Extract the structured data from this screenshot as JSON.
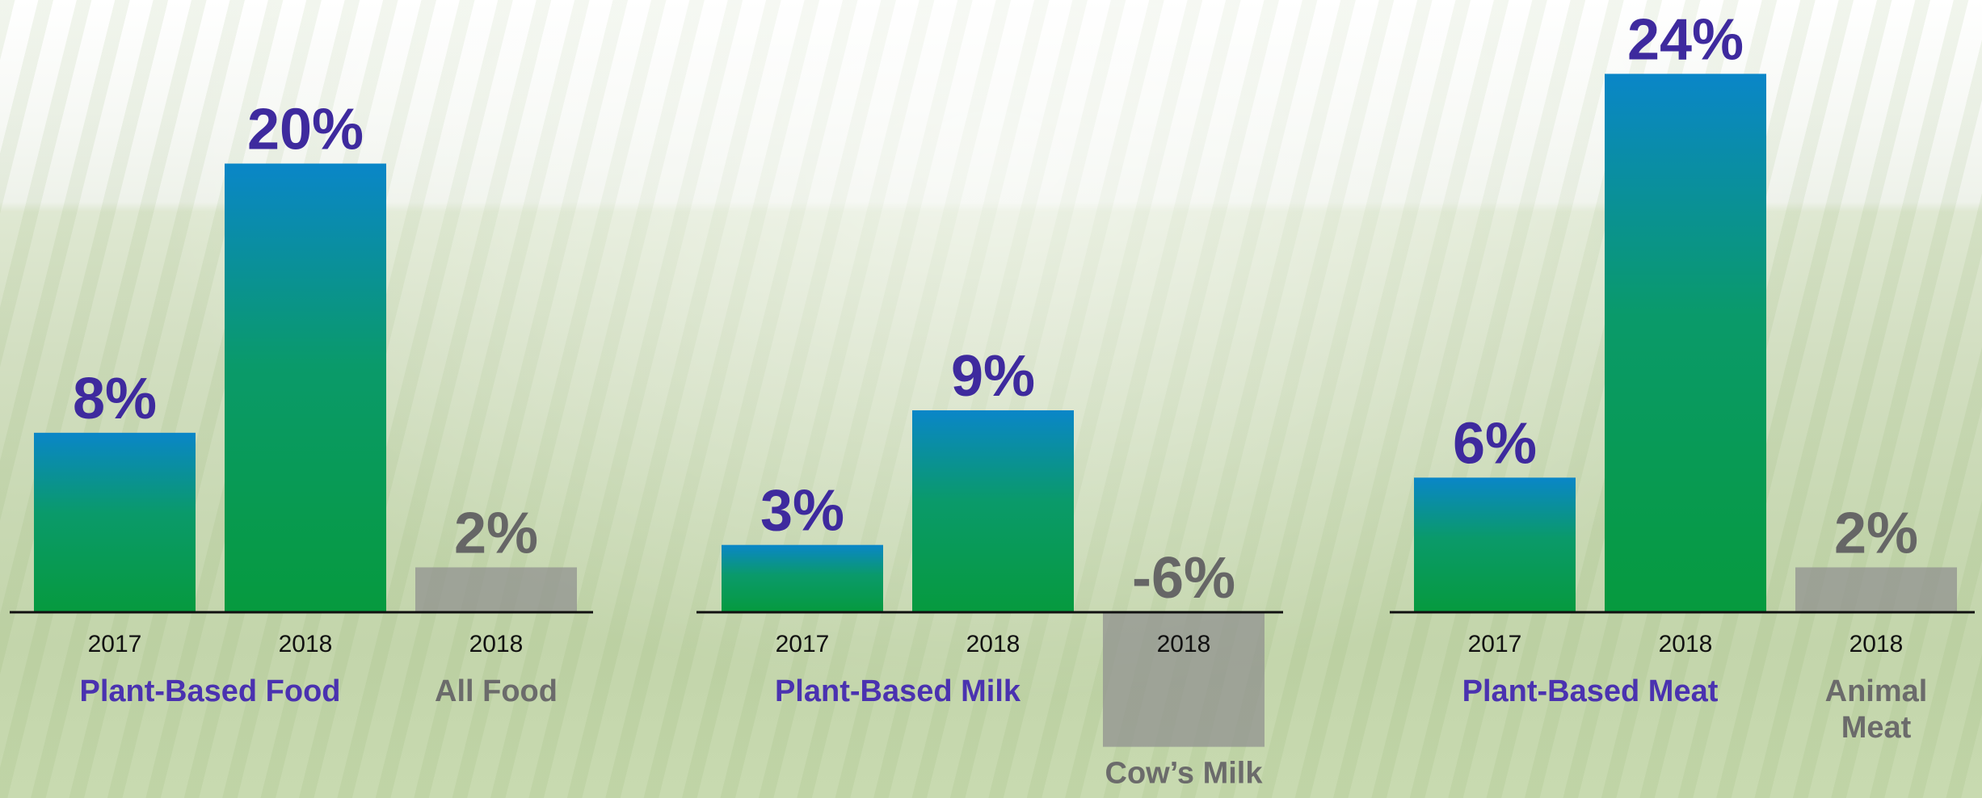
{
  "chart_data": {
    "type": "bar",
    "colors": {
      "gradient_top": "#0a86c8",
      "gradient_bottom": "#069a3e",
      "grey_bar": "#8f8f8f",
      "value_purple": "#3e2a9e",
      "value_grey": "#666666",
      "category_purple": "#4a32b0",
      "category_grey": "#6b6b6b",
      "axis": "#111111"
    },
    "groups": [
      {
        "bars": [
          {
            "year": "2017",
            "value": 8,
            "label": "8%",
            "style": "gradient",
            "category": "Plant-Based Food"
          },
          {
            "year": "2018",
            "value": 20,
            "label": "20%",
            "style": "gradient",
            "category": "Plant-Based Food"
          },
          {
            "year": "2018",
            "value": 2,
            "label": "2%",
            "style": "grey",
            "category": "All Food"
          }
        ],
        "categories": [
          {
            "lines": [
              "Plant-Based Food"
            ],
            "style": "main",
            "spans": [
              0,
              1
            ]
          },
          {
            "lines": [
              "All Food"
            ],
            "style": "grey",
            "spans": [
              2,
              2
            ]
          }
        ]
      },
      {
        "bars": [
          {
            "year": "2017",
            "value": 3,
            "label": "3%",
            "style": "gradient",
            "category": "Plant-Based Milk"
          },
          {
            "year": "2018",
            "value": 9,
            "label": "9%",
            "style": "gradient",
            "category": "Plant-Based Milk"
          },
          {
            "year": "2018",
            "value": -6,
            "label": "-6%",
            "style": "grey",
            "category": "Cow’s Milk"
          }
        ],
        "categories": [
          {
            "lines": [
              "Plant-Based Milk"
            ],
            "style": "main",
            "spans": [
              0,
              1
            ]
          },
          {
            "lines": [
              "Cow’s Milk"
            ],
            "style": "grey",
            "spans": [
              2,
              2
            ],
            "below_bar": true
          }
        ]
      },
      {
        "bars": [
          {
            "year": "2017",
            "value": 6,
            "label": "6%",
            "style": "gradient",
            "category": "Plant-Based Meat"
          },
          {
            "year": "2018",
            "value": 24,
            "label": "24%",
            "style": "gradient",
            "category": "Plant-Based Meat"
          },
          {
            "year": "2018",
            "value": 2,
            "label": "2%",
            "style": "grey",
            "category": "Animal Meat"
          }
        ],
        "categories": [
          {
            "lines": [
              "Plant-Based Meat"
            ],
            "style": "main",
            "spans": [
              0,
              1
            ]
          },
          {
            "lines": [
              "Animal",
              "Meat"
            ],
            "style": "grey",
            "spans": [
              2,
              2
            ]
          }
        ]
      }
    ]
  }
}
